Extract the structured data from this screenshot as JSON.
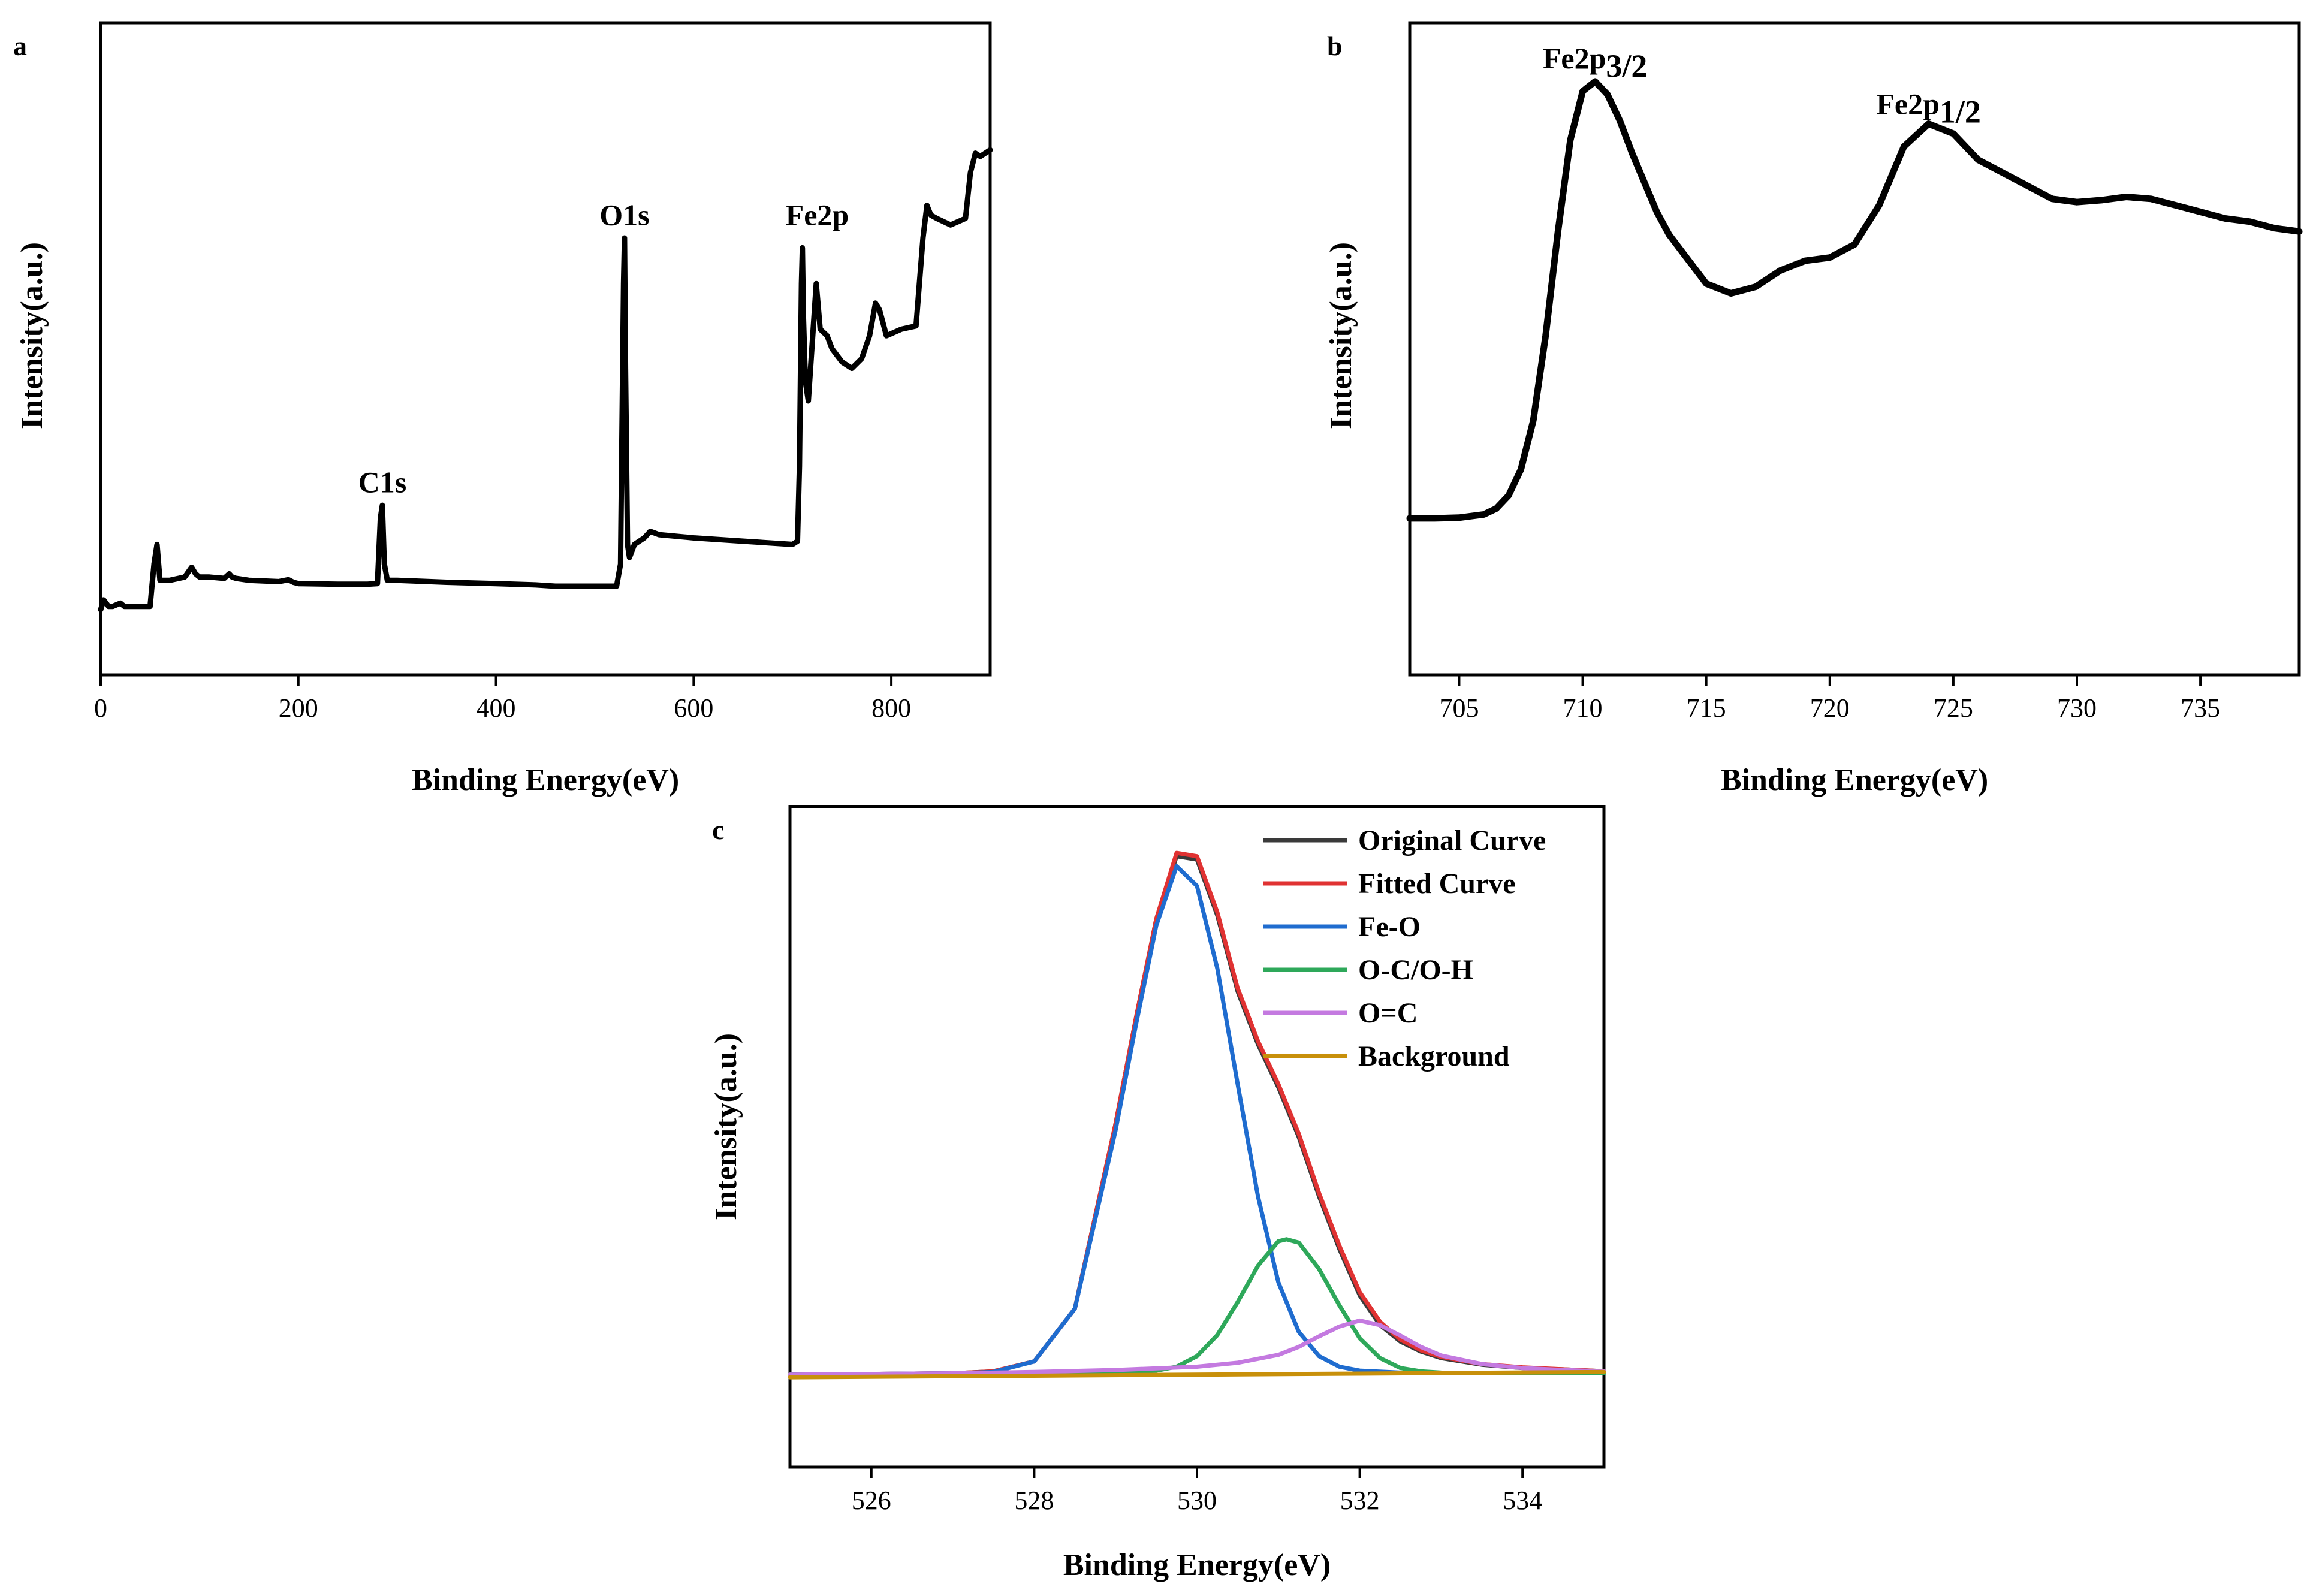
{
  "chart_data": [
    {
      "type": "line",
      "panel_label": "a",
      "xlabel": "Binding Energy(eV)",
      "ylabel": "Intensity(a.u.)",
      "xlim": [
        0,
        900
      ],
      "ylim": [
        0,
        100
      ],
      "x_ticks": [
        0,
        200,
        400,
        600,
        800
      ],
      "y_ticks": [],
      "annotations": [
        {
          "text": "C1s",
          "x": 285,
          "y": 28
        },
        {
          "text": "O1s",
          "x": 530,
          "y": 69
        },
        {
          "text": "Fe2p",
          "x": 725,
          "y": 69
        }
      ],
      "series": [
        {
          "color": "#000000",
          "x": [
            0,
            3,
            8,
            12,
            20,
            24,
            30,
            50,
            54,
            57,
            60,
            70,
            85,
            92,
            96,
            100,
            110,
            125,
            130,
            133,
            137,
            150,
            180,
            190,
            195,
            200,
            240,
            270,
            280,
            283,
            285,
            287,
            290,
            300,
            350,
            400,
            440,
            460,
            522,
            526,
            529,
            530,
            531,
            533,
            535,
            540,
            550,
            556,
            565,
            600,
            650,
            700,
            705,
            707,
            709,
            710,
            711,
            713,
            716,
            720,
            724,
            728,
            735,
            740,
            750,
            760,
            770,
            778,
            784,
            788,
            795,
            810,
            825,
            832,
            836,
            840,
            846,
            860,
            875,
            880,
            885,
            890,
            900
          ],
          "y": [
            10.0,
            11.5,
            10.5,
            10.5,
            11.0,
            10.5,
            10.5,
            10.5,
            17.0,
            20.0,
            14.5,
            14.5,
            15.0,
            16.5,
            15.5,
            15.0,
            15.0,
            14.8,
            15.5,
            15.0,
            14.8,
            14.5,
            14.3,
            14.6,
            14.2,
            14.0,
            13.9,
            13.9,
            14.0,
            24.0,
            26.0,
            17.0,
            14.5,
            14.5,
            14.2,
            14.0,
            13.8,
            13.6,
            13.6,
            17.0,
            60.0,
            67.0,
            47.0,
            20.0,
            18.0,
            20.0,
            21.0,
            22.0,
            21.5,
            21.0,
            20.5,
            20.0,
            20.5,
            32.0,
            60.0,
            65.5,
            55.0,
            45.0,
            42.0,
            51.0,
            60.0,
            53.0,
            52.0,
            50.0,
            48.0,
            47.0,
            48.5,
            52.0,
            57.0,
            56.0,
            52.0,
            53.0,
            53.5,
            67.0,
            72.0,
            70.5,
            70.0,
            69.0,
            70.0,
            77.0,
            80.0,
            79.5,
            80.5
          ]
        }
      ]
    },
    {
      "type": "line",
      "panel_label": "b",
      "xlabel": "Binding Energy(eV)",
      "ylabel": "Intensity(a.u.)",
      "xlim": [
        703,
        739
      ],
      "ylim": [
        0,
        100
      ],
      "x_ticks": [
        705,
        710,
        715,
        720,
        725,
        730,
        735
      ],
      "y_ticks": [],
      "annotations": [
        {
          "main": "Fe2p",
          "sub": "3/2",
          "x": 710.5,
          "y": 93
        },
        {
          "main": "Fe2p",
          "sub": "1/2",
          "x": 724.0,
          "y": 86
        }
      ],
      "series": [
        {
          "color": "#000000",
          "x": [
            703,
            704,
            705,
            706,
            706.5,
            707,
            707.5,
            708,
            708.5,
            709,
            709.5,
            710,
            710.5,
            711,
            711.5,
            712,
            712.5,
            713,
            713.5,
            714,
            715,
            716,
            717,
            718,
            719,
            720,
            721,
            722,
            723,
            724,
            725,
            726,
            727,
            728,
            729,
            730,
            731,
            732,
            733,
            734,
            735,
            736,
            737,
            738,
            739
          ],
          "y": [
            24.0,
            24.0,
            24.1,
            24.6,
            25.5,
            27.5,
            31.5,
            39.0,
            52.0,
            68.0,
            82.0,
            89.5,
            91.0,
            89.0,
            85.0,
            80.0,
            75.5,
            71.0,
            67.5,
            65.0,
            60.0,
            58.5,
            59.5,
            62.0,
            63.5,
            64.0,
            66.0,
            72.0,
            81.0,
            84.5,
            83.0,
            79.0,
            77.0,
            75.0,
            73.0,
            72.5,
            72.8,
            73.3,
            73.0,
            72.0,
            71.0,
            70.0,
            69.5,
            68.5,
            68.0
          ]
        }
      ]
    },
    {
      "type": "line",
      "panel_label": "c",
      "xlabel": "Binding Energy(eV)",
      "ylabel": "Intensity(a.u.)",
      "xlim": [
        525,
        535
      ],
      "ylim": [
        0,
        100
      ],
      "x_ticks": [
        526,
        528,
        530,
        532,
        534
      ],
      "y_ticks": [],
      "legend_position": "top-right",
      "series": [
        {
          "name": "Original Curve",
          "color": "#3a3a3a",
          "x": [
            525,
            526,
            527,
            527.5,
            528,
            528.5,
            529,
            529.25,
            529.5,
            529.75,
            530,
            530.25,
            530.5,
            530.75,
            531,
            531.25,
            531.5,
            531.75,
            532,
            532.25,
            532.5,
            532.75,
            533,
            533.5,
            534,
            534.5,
            535
          ],
          "y": [
            14.0,
            14.1,
            14.2,
            14.5,
            16.0,
            24.0,
            52.0,
            68.0,
            83.0,
            92.5,
            92.0,
            83.5,
            72.0,
            64.0,
            57.5,
            50.0,
            41.0,
            33.0,
            26.0,
            21.5,
            19.0,
            17.5,
            16.5,
            15.5,
            15.0,
            14.8,
            14.5
          ]
        },
        {
          "name": "Fitted Curve",
          "color": "#e03232",
          "x": [
            525,
            526,
            527,
            527.5,
            528,
            528.5,
            529,
            529.25,
            529.5,
            529.75,
            530,
            530.25,
            530.5,
            530.75,
            531,
            531.25,
            531.5,
            531.75,
            532,
            532.25,
            532.5,
            532.75,
            533,
            533.5,
            534,
            534.5,
            535
          ],
          "y": [
            14.0,
            14.1,
            14.2,
            14.5,
            16.0,
            24.0,
            52.0,
            68.0,
            83.0,
            93.0,
            92.5,
            84.0,
            72.5,
            64.5,
            58.0,
            50.5,
            41.5,
            33.5,
            26.5,
            22.0,
            19.3,
            17.7,
            16.7,
            15.6,
            15.1,
            14.8,
            14.5
          ]
        },
        {
          "name": "Fe-O",
          "color": "#1f6ccf",
          "x": [
            525,
            526,
            527,
            527.5,
            528,
            528.5,
            529,
            529.25,
            529.5,
            529.75,
            530,
            530.25,
            530.5,
            530.75,
            531,
            531.25,
            531.5,
            531.75,
            532,
            532.5,
            533,
            534,
            535
          ],
          "y": [
            14.0,
            14.1,
            14.2,
            14.4,
            16.0,
            24.0,
            51.0,
            67.0,
            82.0,
            91.0,
            88.0,
            75.5,
            58.0,
            41.0,
            28.0,
            20.5,
            16.8,
            15.2,
            14.6,
            14.3,
            14.2,
            14.2,
            14.2
          ]
        },
        {
          "name": "O-C/O-H",
          "color": "#2ea85a",
          "x": [
            525,
            527,
            528,
            529,
            529.5,
            529.75,
            530,
            530.25,
            530.5,
            530.75,
            531,
            531.1,
            531.25,
            531.5,
            531.75,
            532,
            532.25,
            532.5,
            532.75,
            533,
            534,
            535
          ],
          "y": [
            14.0,
            14.1,
            14.2,
            14.3,
            14.6,
            15.2,
            16.8,
            20.0,
            25.0,
            30.5,
            34.2,
            34.5,
            34.0,
            30.0,
            24.5,
            19.5,
            16.5,
            15.0,
            14.5,
            14.3,
            14.2,
            14.2
          ]
        },
        {
          "name": "O=C",
          "color": "#c47ae0",
          "x": [
            525,
            527,
            528,
            529,
            530,
            530.5,
            531,
            531.25,
            531.5,
            531.75,
            532,
            532.25,
            532.5,
            532.75,
            533,
            533.5,
            534,
            534.5,
            535
          ],
          "y": [
            14.0,
            14.2,
            14.4,
            14.7,
            15.2,
            15.8,
            17.0,
            18.2,
            19.8,
            21.3,
            22.2,
            21.5,
            19.9,
            18.2,
            16.9,
            15.6,
            15.0,
            14.7,
            14.5
          ]
        },
        {
          "name": "Background",
          "color": "#c8900a",
          "x": [
            525,
            535
          ],
          "y": [
            13.6,
            14.4
          ]
        }
      ]
    }
  ]
}
